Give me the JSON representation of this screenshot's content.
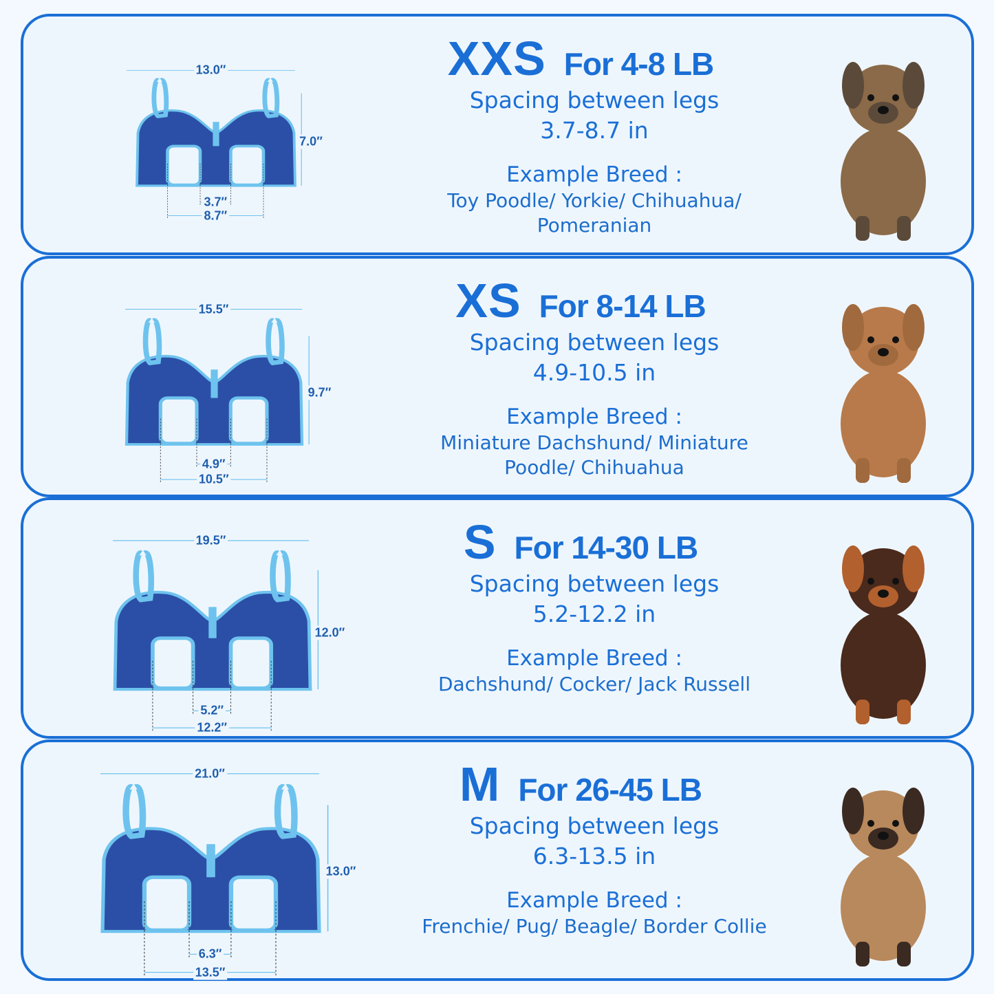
{
  "colors": {
    "accent": "#1a6fd6",
    "harness_body": "#2b4fa6",
    "harness_trim": "#6ec3ee",
    "background": "#eef6fd"
  },
  "unit_mark": "″",
  "spacing_label": "Spacing between legs",
  "breed_label": "Example Breed :",
  "sizes": [
    {
      "size": "XXS",
      "weight": "For 4-8 LB",
      "spacing": "3.7-8.7 in",
      "breeds": [
        "Toy Poodle/ Yorkie/ Chihuahua/",
        "Pomeranian"
      ],
      "dims": {
        "width": "13.0″",
        "height": "7.0″",
        "inner": "3.7″",
        "outer": "8.7″"
      },
      "dog": "yorkie"
    },
    {
      "size": "XS",
      "weight": "For 8-14 LB",
      "spacing": "4.9-10.5 in",
      "breeds": [
        "Miniature Dachshund/ Miniature",
        "Poodle/ Chihuahua"
      ],
      "dims": {
        "width": "15.5″",
        "height": "9.7″",
        "inner": "4.9″",
        "outer": "10.5″"
      },
      "dog": "poodle"
    },
    {
      "size": "S",
      "weight": "For 14-30 LB",
      "spacing": "5.2-12.2 in",
      "breeds": [
        "Dachshund/ Cocker/ Jack Russell"
      ],
      "dims": {
        "width": "19.5″",
        "height": "12.0″",
        "inner": "5.2″",
        "outer": "12.2″"
      },
      "dog": "dachshund"
    },
    {
      "size": "M",
      "weight": "For 26-45 LB",
      "spacing": "6.3-13.5 in",
      "breeds": [
        "Frenchie/ Pug/ Beagle/ Border Collie"
      ],
      "dims": {
        "width": "21.0″",
        "height": "13.0″",
        "inner": "6.3″",
        "outer": "13.5″"
      },
      "dog": "french-bulldog"
    }
  ]
}
